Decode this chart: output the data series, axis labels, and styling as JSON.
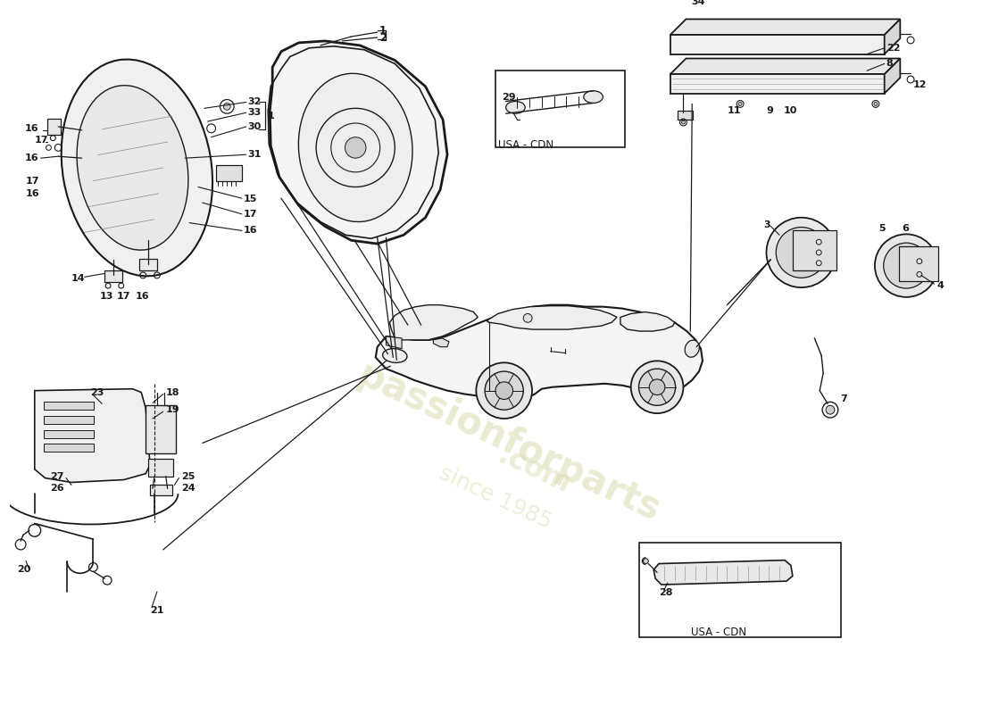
{
  "bg_color": "#ffffff",
  "line_color": "#1a1a1a",
  "label_color": "#1a1a1a",
  "watermark_color": "#d4d4a0",
  "usa_cdn_label": "USA - CDN",
  "fig_width": 11.0,
  "fig_height": 8.0,
  "dpi": 100,
  "parts": {
    "headlight_labels": [
      "16",
      "17",
      "32",
      "33",
      "30",
      "1",
      "31",
      "15",
      "17",
      "16",
      "14",
      "17",
      "16",
      "13",
      "17",
      "16"
    ],
    "taillight_labels": [
      "1",
      "2"
    ],
    "rear_bar_labels": [
      "22",
      "8",
      "34",
      "11",
      "9",
      "10",
      "12"
    ],
    "lamp_labels": [
      "3",
      "5",
      "6",
      "4"
    ],
    "lower_labels": [
      "18",
      "19",
      "25",
      "24",
      "27",
      "26",
      "23",
      "21",
      "20"
    ],
    "other_labels": [
      "29",
      "7",
      "28"
    ]
  }
}
